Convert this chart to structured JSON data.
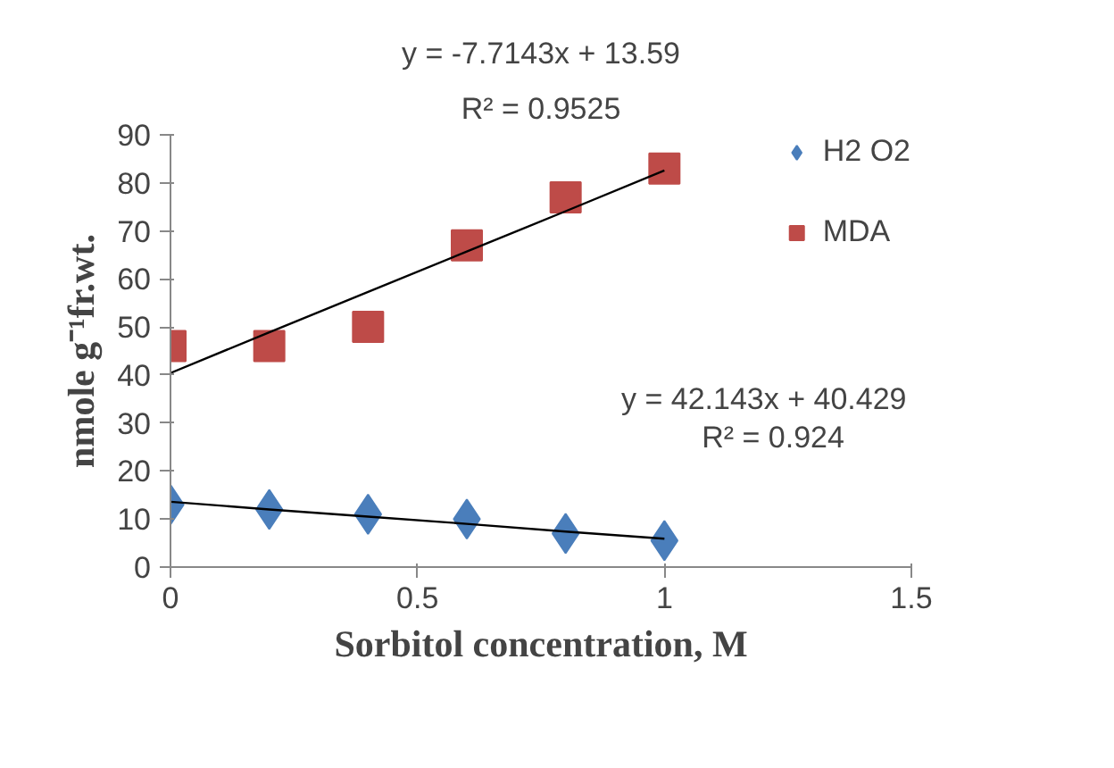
{
  "chart_data": {
    "type": "scatter",
    "xlabel": "Sorbitol concentration, M",
    "ylabel": "nmole g⁻¹fr.wt.",
    "x": [
      0,
      0.2,
      0.4,
      0.6,
      0.8,
      1
    ],
    "series": [
      {
        "name": "H2 O2",
        "color": "#4a7ebb",
        "marker": "diamond",
        "values": [
          13,
          12,
          11,
          10,
          7,
          5.5
        ]
      },
      {
        "name": "MDA",
        "color": "#be4b48",
        "marker": "square",
        "values": [
          46,
          46,
          50,
          67,
          77,
          83
        ]
      },
      {
        "type": "line",
        "color": "#000000",
        "marker": "none",
        "values": [
          13.6,
          12.0,
          10.5,
          9.0,
          7.4,
          5.9
        ]
      },
      {
        "type": "line",
        "color": "#000000",
        "marker": "none",
        "values": [
          40.4,
          48.9,
          57.3,
          65.7,
          74.1,
          82.6
        ]
      }
    ],
    "xlim": [
      0,
      1.5
    ],
    "xticks": [
      0,
      0.5,
      1,
      1.5
    ],
    "ylim": [
      0,
      90
    ],
    "yticks": [
      0,
      10,
      20,
      30,
      40,
      50,
      60,
      70,
      80,
      90
    ],
    "grid": false,
    "legend": "top right",
    "annotations": [
      "y = -7.7143x + 13.59",
      "R² = 0.9525",
      "y = 42.143x + 40.429",
      "R² = 0.924"
    ]
  }
}
